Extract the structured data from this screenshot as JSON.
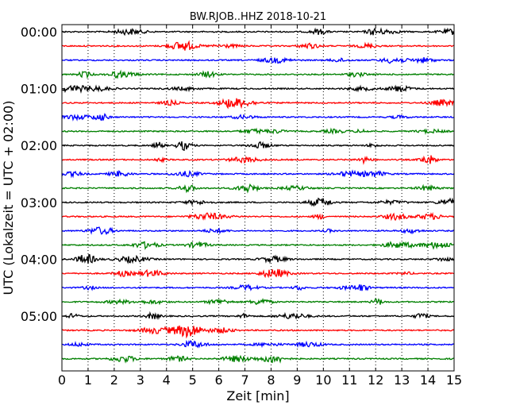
{
  "chart_data": {
    "type": "line",
    "title": "BW.RJOB..HHZ 2018-10-21",
    "xlabel": "Zeit  [min]",
    "ylabel": "UTC (Lokalzeit = UTC + 02:00)",
    "xlim": [
      0,
      15
    ],
    "x_ticks": [
      "0",
      "1",
      "2",
      "3",
      "4",
      "5",
      "6",
      "7",
      "8",
      "9",
      "10",
      "11",
      "12",
      "13",
      "14",
      "15"
    ],
    "y_ticks": [
      "00:00",
      "01:00",
      "02:00",
      "03:00",
      "04:00",
      "05:00"
    ],
    "rows_per_hour": 4,
    "row_count": 24,
    "colors": [
      "#000000",
      "#ff0000",
      "#0000ff",
      "#008000"
    ],
    "grid": "vertical dotted at each minute",
    "legend": "none"
  }
}
